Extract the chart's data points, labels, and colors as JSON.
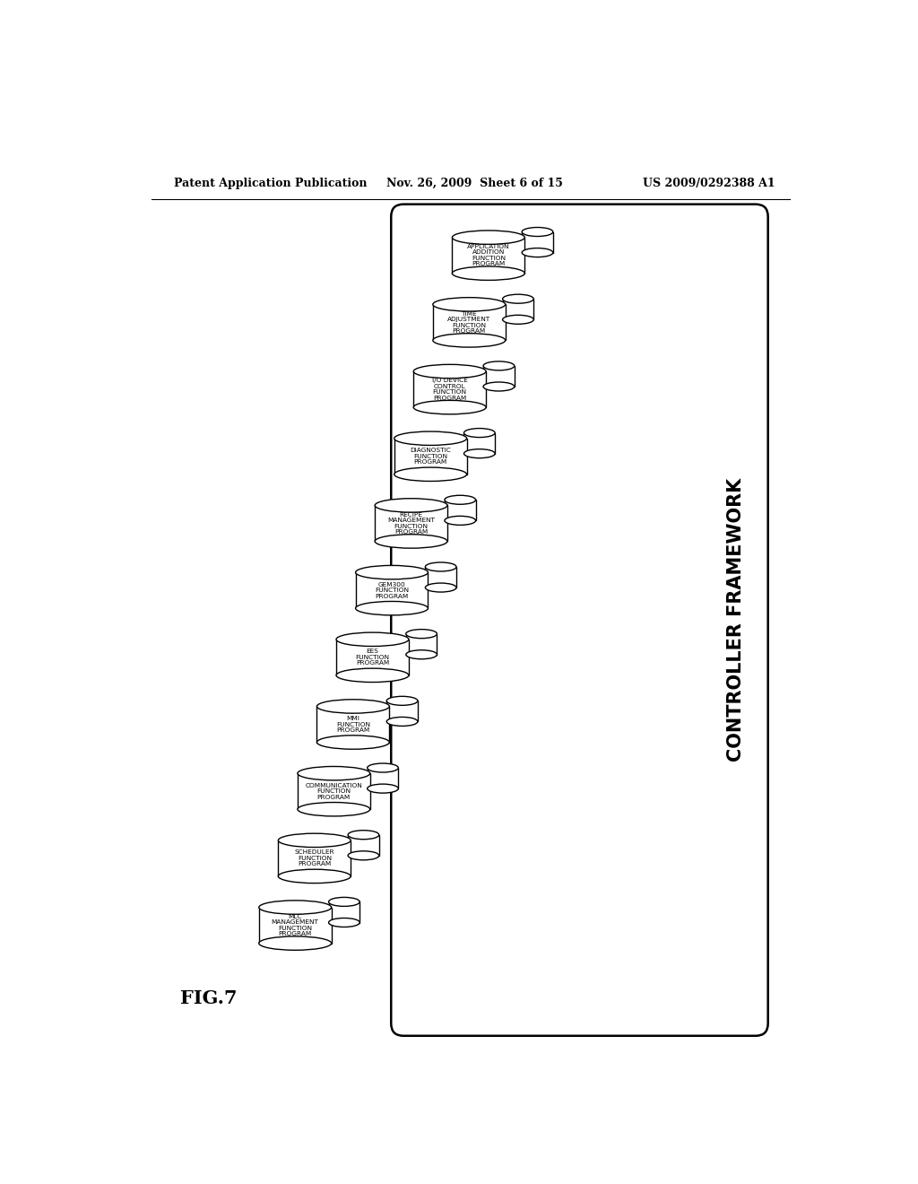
{
  "header_left": "Patent Application Publication",
  "header_center": "Nov. 26, 2009  Sheet 6 of 15",
  "header_right": "US 2009/0292388 A1",
  "figure_label": "FIG.7",
  "framework_label": "CONTROLLER FRAMEWORK",
  "background_color": "#ffffff",
  "programs": [
    "APPLICATION\nADDITION\nFUNCTION\nPROGRAM",
    "TIME\nADJUSTMENT\nFUNCTION\nPROGRAM",
    "I/O DEVICE\nCONTROL\nFUNCTION\nPROGRAM",
    "DIAGNOSTIC\nFUNCTION\nPROGRAM",
    "RECIPE\nMANAGEMENT\nFUNCTION\nPROGRAM",
    "GEM300\nFUNCTION\nPROGRAM",
    "EES\nFUNCTION\nPROGRAM",
    "MMI\nFUNCTION\nPROGRAM",
    "COMMUNICATION\nFUNCTION\nPROGRAM",
    "SCHEDULER\nFUNCTION\nPROGRAM",
    "MLC\nMANAGEMENT\nFUNCTION\nPROGRAM"
  ]
}
